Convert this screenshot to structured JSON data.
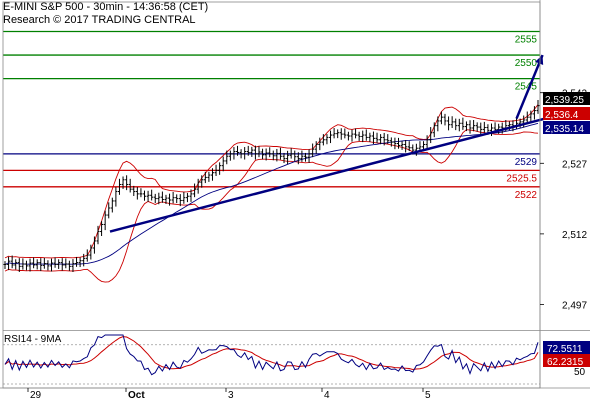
{
  "header": {
    "title": "E-MINI S&P 500 - 30min - 14:36:58 (CET)",
    "subtitle": "Research © 2017 TRADING CENTRAL"
  },
  "chart_data": {
    "type": "line",
    "instrument": "E-MINI S&P 500",
    "timeframe": "30min",
    "ylim": [
      2492,
      2560
    ],
    "yticks": [
      {
        "label": "2,542",
        "value": 2542
      },
      {
        "label": "2,527",
        "value": 2527
      },
      {
        "label": "2,512",
        "value": 2512
      },
      {
        "label": "2,497",
        "value": 2497
      }
    ],
    "xticks": [
      "29",
      "Oct",
      "3",
      "4",
      "5"
    ],
    "levels": [
      {
        "label": "2555",
        "value": 2555,
        "color": "#008000",
        "kind": "resistance"
      },
      {
        "label": "2550",
        "value": 2550,
        "color": "#008000",
        "kind": "resistance"
      },
      {
        "label": "2545",
        "value": 2545,
        "color": "#008000",
        "kind": "resistance"
      },
      {
        "label": "2529",
        "value": 2529,
        "color": "#000080",
        "kind": "pivot"
      },
      {
        "label": "2525.5",
        "value": 2525.5,
        "color": "#cc0000",
        "kind": "support"
      },
      {
        "label": "2522",
        "value": 2522,
        "color": "#cc0000",
        "kind": "support"
      }
    ],
    "price_tags": [
      {
        "label": "2,539.25",
        "value": 2539.25,
        "bg": "#000000",
        "fg": "#ffffff"
      },
      {
        "label": "2,536.4",
        "value": 2536.4,
        "bg": "#cc0000",
        "fg": "#ffffff"
      },
      {
        "label": "2,535.14",
        "value": 2535.14,
        "bg": "#000080",
        "fg": "#ffffff"
      }
    ],
    "trendline": {
      "from": [
        0,
        2512.5
      ],
      "to": [
        151,
        2536.5
      ],
      "color": "#000080"
    },
    "projection_arrow": {
      "from": [
        143,
        2536.5
      ],
      "to": [
        154,
        2550
      ],
      "color": "#000080"
    },
    "price": [
      2505.5,
      2506.2,
      2505.4,
      2505.9,
      2505.1,
      2505.6,
      2505.2,
      2505.8,
      2505.4,
      2505.9,
      2505.3,
      2505.7,
      2505.2,
      2505.8,
      2505.5,
      2505.9,
      2505.4,
      2505.6,
      2505.1,
      2505.7,
      2505.9,
      2506.3,
      2506.8,
      2507.5,
      2509.0,
      2510.5,
      2512.5,
      2514.0,
      2516.0,
      2517.5,
      2519.0,
      2521.0,
      2522.5,
      2523.5,
      2522.5,
      2521.5,
      2521.0,
      2520.5,
      2520.5,
      2520.0,
      2520.2,
      2519.8,
      2519.5,
      2519.8,
      2519.3,
      2519.6,
      2519.2,
      2519.7,
      2519.5,
      2519.1,
      2519.7,
      2520.0,
      2520.5,
      2521.5,
      2523.0,
      2523.5,
      2524.0,
      2524.5,
      2525.0,
      2525.5,
      2526.5,
      2527.5,
      2528.5,
      2529.0,
      2529.5,
      2529.3,
      2529.0,
      2529.5,
      2529.3,
      2529.8,
      2529.0,
      2529.4,
      2528.8,
      2529.2,
      2529.0,
      2528.6,
      2529.1,
      2528.5,
      2528.0,
      2528.7,
      2529.0,
      2528.4,
      2528.0,
      2528.5,
      2528.3,
      2529.0,
      2530.0,
      2531.0,
      2531.5,
      2532.0,
      2532.5,
      2533.0,
      2533.3,
      2533.5,
      2533.2,
      2533.0,
      2532.8,
      2533.2,
      2533.0,
      2532.7,
      2533.0,
      2532.5,
      2532.8,
      2532.3,
      2532.0,
      2532.5,
      2532.0,
      2531.8,
      2531.5,
      2531.2,
      2530.8,
      2531.0,
      2530.5,
      2530.3,
      2529.8,
      2530.2,
      2530.5,
      2531.0,
      2532.0,
      2533.5,
      2535.0,
      2536.0,
      2536.8,
      2536.0,
      2535.2,
      2535.8,
      2535.0,
      2535.5,
      2534.8,
      2535.2,
      2534.5,
      2535.0,
      2534.7,
      2534.2,
      2534.6,
      2534.0,
      2534.5,
      2534.2,
      2534.7,
      2534.5,
      2535.0,
      2535.2,
      2535.0,
      2535.5,
      2535.8,
      2536.2,
      2536.8,
      2537.5,
      2538.2,
      2539.25
    ],
    "rsi": {
      "label": "RSI14 - 9MA",
      "ylim": [
        30,
        82
      ],
      "tags": [
        {
          "label": "72.5511",
          "value": 72.5511,
          "bg": "#000080",
          "fg": "#ffffff"
        },
        {
          "label": "62.2315",
          "value": 62.2315,
          "bg": "#cc0000",
          "fg": "#ffffff"
        }
      ],
      "ticks": [
        {
          "label": "50",
          "value": 50
        }
      ],
      "levels": [
        70,
        30
      ]
    }
  }
}
